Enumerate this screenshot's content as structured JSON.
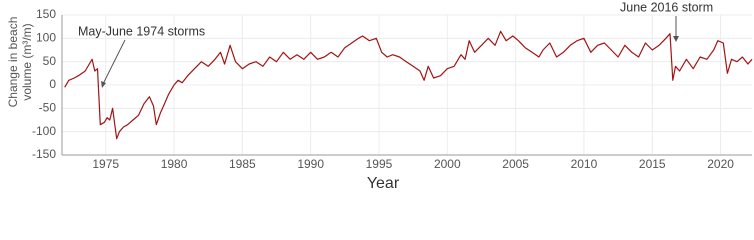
{
  "chart_data": {
    "type": "line",
    "ylabel": [
      "Change in beach",
      "volume (m³/m)"
    ],
    "xlabel": "Year",
    "color": "#a31414",
    "grid": true,
    "xlim": [
      1971.8,
      2022.3
    ],
    "xticks": [
      1975,
      1980,
      1985,
      1990,
      1995,
      2000,
      2005,
      2010,
      2015,
      2020
    ],
    "ylim": [
      -150,
      150
    ],
    "yticks": [
      -150,
      -100,
      -50,
      0,
      50,
      100,
      150
    ],
    "annotations": [
      "May-June 1974 storms",
      "June 2016 storm"
    ],
    "x": [
      1972.0,
      1972.3,
      1972.7,
      1973.0,
      1973.5,
      1973.8,
      1974.0,
      1974.2,
      1974.4,
      1974.6,
      1974.9,
      1975.1,
      1975.3,
      1975.5,
      1975.8,
      1976.0,
      1976.3,
      1976.6,
      1977.0,
      1977.4,
      1977.8,
      1978.2,
      1978.5,
      1978.7,
      1979.0,
      1979.3,
      1979.6,
      1980.0,
      1980.3,
      1980.6,
      1981.0,
      1981.5,
      1982.0,
      1982.5,
      1983.0,
      1983.4,
      1983.7,
      1984.1,
      1984.5,
      1985.0,
      1985.5,
      1986.0,
      1986.5,
      1987.0,
      1987.5,
      1988.0,
      1988.5,
      1989.0,
      1989.5,
      1990.0,
      1990.5,
      1991.0,
      1991.5,
      1992.0,
      1992.5,
      1993.0,
      1993.5,
      1993.8,
      1994.3,
      1994.8,
      1995.2,
      1995.6,
      1996.0,
      1996.5,
      1997.0,
      1997.5,
      1998.0,
      1998.3,
      1998.6,
      1999.0,
      1999.5,
      2000.0,
      2000.5,
      2001.0,
      2001.3,
      2001.6,
      2002.0,
      2002.5,
      2003.0,
      2003.5,
      2003.9,
      2004.3,
      2004.8,
      2005.2,
      2005.7,
      2006.2,
      2006.7,
      2007.0,
      2007.5,
      2008.0,
      2008.5,
      2009.0,
      2009.5,
      2010.0,
      2010.5,
      2011.0,
      2011.5,
      2012.0,
      2012.5,
      2013.0,
      2013.5,
      2014.0,
      2014.5,
      2015.0,
      2015.5,
      2016.0,
      2016.3,
      2016.5,
      2016.7,
      2017.0,
      2017.5,
      2018.0,
      2018.5,
      2019.0,
      2019.5,
      2019.8,
      2020.2,
      2020.5,
      2020.8,
      2021.2,
      2021.6,
      2022.0,
      2022.3
    ],
    "values": [
      -5,
      10,
      15,
      20,
      30,
      45,
      55,
      30,
      35,
      -85,
      -80,
      -70,
      -75,
      -50,
      -115,
      -100,
      -90,
      -85,
      -75,
      -65,
      -40,
      -25,
      -45,
      -85,
      -60,
      -40,
      -20,
      0,
      10,
      5,
      20,
      35,
      50,
      40,
      55,
      70,
      45,
      85,
      50,
      35,
      45,
      50,
      40,
      60,
      50,
      70,
      55,
      65,
      55,
      70,
      55,
      60,
      70,
      60,
      80,
      90,
      100,
      105,
      95,
      100,
      70,
      60,
      65,
      60,
      50,
      40,
      30,
      10,
      40,
      15,
      20,
      35,
      40,
      65,
      55,
      95,
      70,
      85,
      100,
      85,
      115,
      95,
      105,
      95,
      80,
      70,
      60,
      75,
      90,
      60,
      70,
      85,
      95,
      100,
      70,
      85,
      90,
      75,
      60,
      85,
      70,
      60,
      90,
      75,
      85,
      100,
      110,
      10,
      40,
      30,
      55,
      35,
      60,
      55,
      75,
      95,
      90,
      25,
      55,
      50,
      60,
      45,
      55
    ]
  }
}
